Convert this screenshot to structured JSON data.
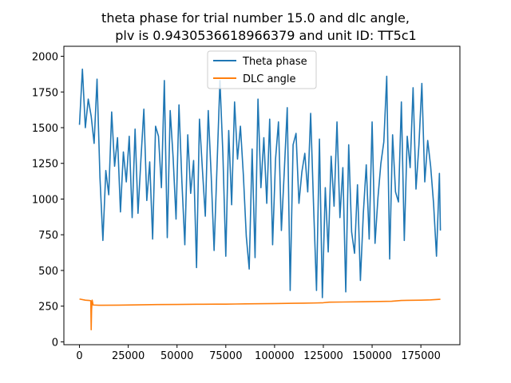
{
  "chart_data": {
    "type": "line",
    "title": [
      "theta phase for trial number 15.0 and dlc angle,",
      "plv is 0.9430536618966379 and unit ID: TT5c1"
    ],
    "xlabel": "",
    "ylabel": "",
    "xlim": [
      -8000,
      195000
    ],
    "ylim": [
      -20,
      2070
    ],
    "x_ticks": [
      0,
      25000,
      50000,
      75000,
      100000,
      125000,
      150000,
      175000
    ],
    "y_ticks": [
      0,
      250,
      500,
      750,
      1000,
      1250,
      1500,
      1750,
      2000
    ],
    "grid": false,
    "legend_position": "top-center",
    "series": [
      {
        "name": "Theta phase",
        "color": "#1f77b4",
        "x": [
          0,
          1500,
          3000,
          4500,
          6000,
          7500,
          9000,
          10500,
          12000,
          13500,
          15000,
          16500,
          18000,
          19500,
          21000,
          22500,
          24000,
          25500,
          27000,
          28500,
          30000,
          31500,
          33000,
          34500,
          36000,
          37500,
          39000,
          40500,
          42000,
          43500,
          45000,
          46500,
          48000,
          49500,
          51000,
          52500,
          54000,
          55500,
          57000,
          58500,
          60000,
          61500,
          63000,
          64500,
          66000,
          67500,
          69000,
          70500,
          72000,
          73500,
          75000,
          76500,
          78000,
          79500,
          81000,
          82500,
          84000,
          85500,
          87000,
          88500,
          90000,
          91500,
          93000,
          94500,
          96000,
          97500,
          99000,
          100500,
          102000,
          103500,
          105000,
          106500,
          108000,
          109500,
          111000,
          112500,
          114000,
          115500,
          117000,
          118500,
          120000,
          121500,
          123000,
          124500,
          126000,
          127500,
          129000,
          130500,
          132000,
          133500,
          135000,
          136500,
          138000,
          139500,
          141000,
          142500,
          144000,
          145500,
          147000,
          148500,
          150000,
          151500,
          153000,
          154500,
          156000,
          157500,
          159000,
          160500,
          162000,
          163500,
          165000,
          166500,
          168000,
          169500,
          171000,
          172500,
          174000,
          175500,
          177000,
          178500,
          180000,
          181500,
          183000,
          184500,
          185000
        ],
        "values": [
          1520,
          1910,
          1500,
          1700,
          1580,
          1390,
          1840,
          1150,
          710,
          1200,
          1030,
          1610,
          1230,
          1430,
          910,
          1330,
          1120,
          1440,
          870,
          1490,
          900,
          1280,
          1630,
          990,
          1260,
          720,
          1510,
          1440,
          1080,
          1830,
          730,
          1620,
          1290,
          860,
          1660,
          1120,
          680,
          1450,
          1040,
          1270,
          520,
          1560,
          1210,
          880,
          1620,
          1170,
          640,
          1230,
          1830,
          1320,
          600,
          1480,
          960,
          1680,
          1280,
          1510,
          1170,
          740,
          510,
          1350,
          590,
          1700,
          1080,
          1430,
          970,
          1560,
          680,
          1280,
          1540,
          780,
          1200,
          1640,
          360,
          1380,
          1460,
          970,
          1190,
          1320,
          1050,
          1600,
          950,
          360,
          1420,
          310,
          1080,
          630,
          1300,
          950,
          1540,
          870,
          1220,
          350,
          1380,
          770,
          620,
          1100,
          430,
          900,
          1240,
          720,
          1540,
          690,
          1010,
          1250,
          1400,
          1860,
          580,
          1450,
          1050,
          980,
          1680,
          710,
          1440,
          1220,
          1780,
          1070,
          1380,
          1810,
          1120,
          1410,
          1230,
          970,
          600,
          1180,
          780
        ],
        "extremes": {
          "max": 1920,
          "min": 290
        }
      },
      {
        "name": "DLC angle",
        "color": "#ff7f0e",
        "x": [
          0,
          3000,
          5000,
          5800,
          6000,
          6200,
          6500,
          7000,
          10000,
          20000,
          30000,
          40000,
          50000,
          60000,
          70000,
          75000,
          80000,
          85000,
          90000,
          100000,
          110000,
          120000,
          125000,
          128000,
          135000,
          145000,
          160000,
          165000,
          175000,
          180000,
          185000
        ],
        "values": [
          300,
          292,
          290,
          288,
          85,
          225,
          292,
          258,
          256,
          257,
          259,
          261,
          262,
          263,
          264,
          264,
          265,
          266,
          267,
          268,
          270,
          272,
          274,
          278,
          279,
          281,
          284,
          290,
          292,
          294,
          298
        ]
      }
    ]
  }
}
